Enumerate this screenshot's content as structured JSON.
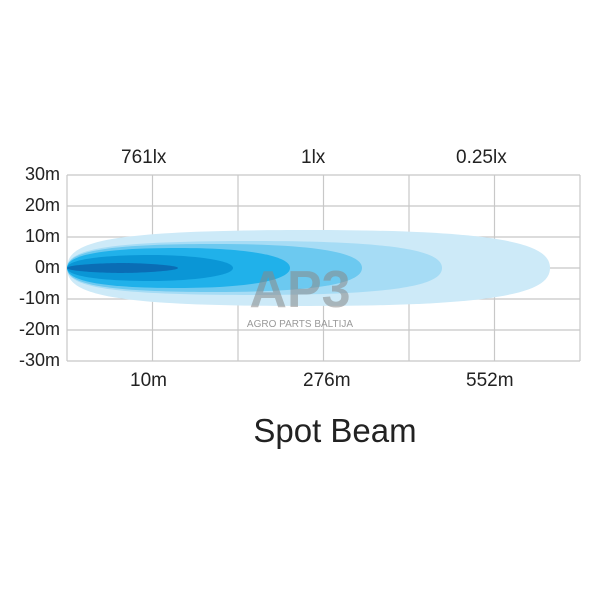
{
  "top_labels": [
    "761lx",
    "1lx",
    "0.25lx"
  ],
  "bottom_labels": [
    "10m",
    "276m",
    "552m"
  ],
  "y_labels": [
    "30m",
    "20m",
    "10m",
    "0m",
    "-10m",
    "-20m",
    "-30m"
  ],
  "title": "Spot Beam",
  "watermark": {
    "logo": "AP3",
    "text": "AGRO PARTS BALTIJA"
  },
  "colors": {
    "outer": "#cdeaf8",
    "mid1": "#a6dcf5",
    "mid2": "#6cc9f0",
    "mid3": "#20b1ea",
    "mid4": "#0a96d6",
    "core": "#0a6db5",
    "grid": "#c8c8c8"
  }
}
